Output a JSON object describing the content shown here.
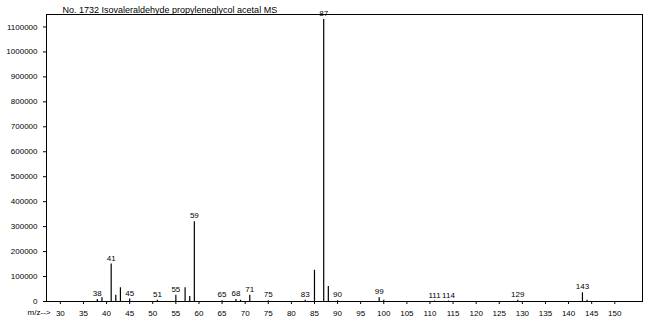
{
  "chart_data": {
    "type": "bar",
    "title": "No. 1732 Isovaleraldehyde propyleneglycol acetal MS",
    "x_label": "m/z-->",
    "x": [
      38,
      39,
      41,
      42,
      43,
      45,
      51,
      55,
      57,
      58,
      59,
      65,
      68,
      69,
      71,
      75,
      83,
      85,
      87,
      88,
      90,
      99,
      100,
      111,
      114,
      129,
      143,
      144
    ],
    "values": [
      8000,
      15000,
      150000,
      25000,
      55000,
      10000,
      5000,
      25000,
      55000,
      20000,
      320000,
      3000,
      8000,
      5000,
      25000,
      3000,
      5000,
      125000,
      1130000,
      60000,
      3000,
      15000,
      5000,
      2000,
      2000,
      5000,
      35000,
      5000
    ],
    "peak_labels": [
      "38",
      null,
      "41",
      null,
      null,
      "45",
      "51",
      "55",
      null,
      null,
      "59",
      "65",
      "68",
      null,
      "71",
      "75",
      "83",
      null,
      "87",
      null,
      "90",
      "99",
      null,
      "111",
      "114",
      "129",
      "143",
      null
    ],
    "color": "#000000",
    "xlim": [
      27,
      156
    ],
    "xticks": [
      30,
      35,
      40,
      45,
      50,
      55,
      60,
      65,
      70,
      75,
      80,
      85,
      90,
      95,
      100,
      105,
      110,
      115,
      120,
      125,
      130,
      135,
      140,
      145,
      150
    ],
    "ylim": [
      0,
      1150000
    ],
    "yticks": [
      0,
      100000,
      200000,
      300000,
      400000,
      500000,
      600000,
      700000,
      800000,
      900000,
      1000000,
      1100000
    ],
    "grid": false
  }
}
